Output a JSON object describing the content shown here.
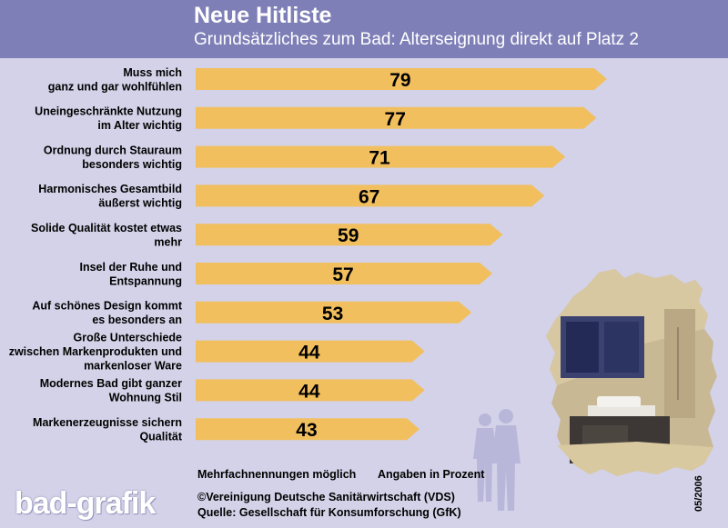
{
  "header": {
    "title": "Neue Hitliste",
    "subtitle": "Grundsätzliches zum Bad: Alterseignung direkt auf Platz 2"
  },
  "colors": {
    "header_bg": "#7f7fb8",
    "background": "#d3d2e8",
    "bar": "#f2bf5e",
    "text": "#000000"
  },
  "chart_data": {
    "type": "bar",
    "orientation": "horizontal",
    "title": "Neue Hitliste",
    "subtitle": "Grundsätzliches zum Bad: Alterseignung direkt auf Platz 2",
    "categories": [
      [
        "Muss mich",
        "ganz und gar wohlfühlen"
      ],
      [
        "Uneingeschränkte Nutzung",
        "im Alter wichtig"
      ],
      [
        "Ordnung durch Stauraum",
        "besonders wichtig"
      ],
      [
        "Harmonisches Gesamtbild",
        "äußerst wichtig"
      ],
      [
        "Solide Qualität kostet etwas",
        "mehr"
      ],
      [
        "Insel der Ruhe und",
        "Entspannung"
      ],
      [
        "Auf schönes Design kommt",
        "es besonders an"
      ],
      [
        "Große Unterschiede",
        "zwischen Markenprodukten und",
        "markenloser Ware"
      ],
      [
        "Modernes Bad gibt ganzer",
        "Wohnung Stil"
      ],
      [
        "Markenerzeugnisse sichern",
        "Qualität"
      ]
    ],
    "values": [
      79,
      77,
      71,
      67,
      59,
      57,
      53,
      44,
      44,
      43
    ],
    "unit": "Prozent",
    "grid": false,
    "legend": "none"
  },
  "footer": {
    "note_left": "Mehrfachnennungen möglich",
    "note_right": "Angaben in Prozent",
    "copyright": "©Vereinigung Deutsche Sanitärwirtschaft (VDS)",
    "source": "Quelle: Gesellschaft für Konsumforschung (GfK)",
    "logo": "bad-grafik",
    "date": "05/2006"
  },
  "illustration": {
    "icon": "bathroom-germany-map-photo",
    "figures": "couple-silhouette-icon"
  }
}
